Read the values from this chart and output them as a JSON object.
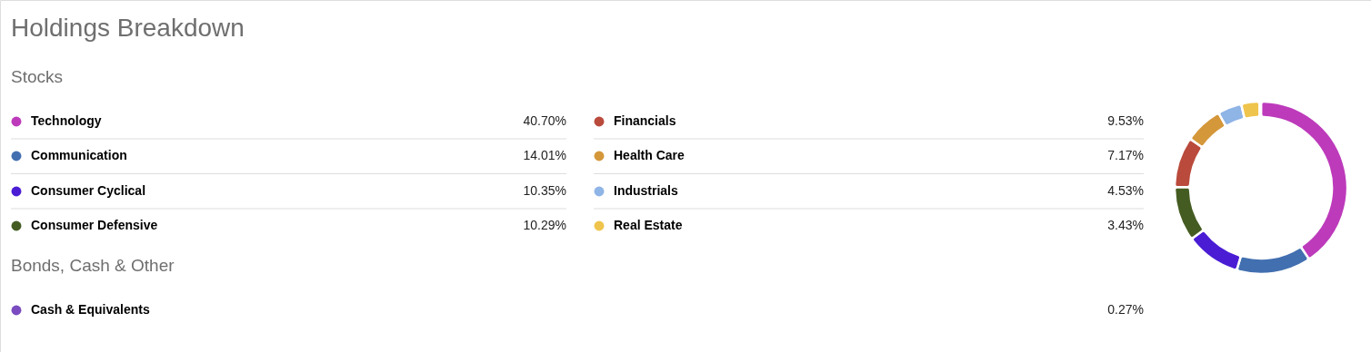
{
  "chart_data": {
    "type": "donut",
    "title": "Holdings Breakdown",
    "subtitle": "Stocks",
    "annotations": [
      "Bonds, Cash & Other"
    ],
    "categories": [
      "Technology",
      "Communication",
      "Consumer Cyclical",
      "Consumer Defensive",
      "Financials",
      "Health Care",
      "Industrials",
      "Real Estate",
      "Cash & Equivalents"
    ],
    "values": [
      40.7,
      14.01,
      10.35,
      10.29,
      9.53,
      7.17,
      4.53,
      3.43,
      0.27
    ],
    "value_labels": [
      "40.70%",
      "14.01%",
      "10.35%",
      "10.29%",
      "9.53%",
      "7.17%",
      "4.53%",
      "3.43%",
      "0.27%"
    ],
    "colors": [
      "#bd3abb",
      "#426fb0",
      "#4a1dd4",
      "#445c22",
      "#b94a3c",
      "#d4973a",
      "#8fb4e6",
      "#efc44c",
      "#7a4cbf"
    ],
    "legend": "left"
  }
}
